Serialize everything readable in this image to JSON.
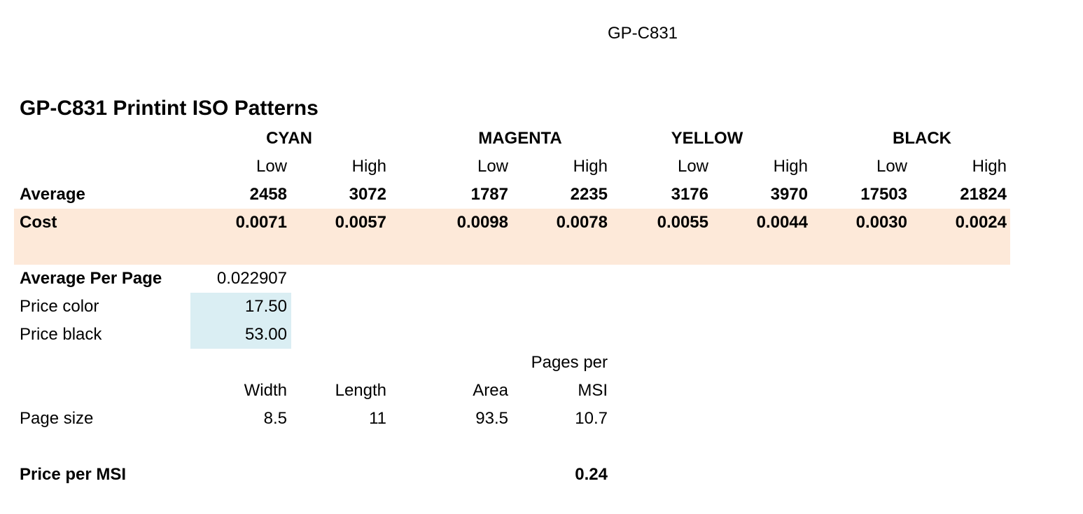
{
  "header": {
    "title": "GP-C831"
  },
  "main_title": "GP-C831 Printint ISO Patterns",
  "groups": [
    "CYAN",
    "MAGENTA",
    "YELLOW",
    "BLACK"
  ],
  "sub_headers": [
    "Low",
    "High",
    "Low",
    "High",
    "Low",
    "High",
    "Low",
    "High"
  ],
  "average": {
    "label": "Average",
    "values": [
      "2458",
      "3072",
      "1787",
      "2235",
      "3176",
      "3970",
      "17503",
      "21824"
    ]
  },
  "cost": {
    "label": "Cost",
    "values": [
      "0.0071",
      "0.0057",
      "0.0098",
      "0.0078",
      "0.0055",
      "0.0044",
      "0.0030",
      "0.0024"
    ]
  },
  "average_per_page": {
    "label": "Average Per Page",
    "value": "0.022907"
  },
  "price_color": {
    "label": "Price color",
    "value": "17.50"
  },
  "price_black": {
    "label": "Price black",
    "value": "53.00"
  },
  "page_table": {
    "pages_per_label_line1": "Pages per",
    "headers": [
      "Width",
      "Length",
      "Area",
      "MSI"
    ],
    "row_label": "Page size",
    "values": [
      "8.5",
      "11",
      "93.5",
      "10.7"
    ]
  },
  "price_per_msi": {
    "label": "Price per MSI",
    "value": "0.24"
  },
  "colors": {
    "cost_band": "#fde9d9",
    "price_band": "#daeef3"
  }
}
